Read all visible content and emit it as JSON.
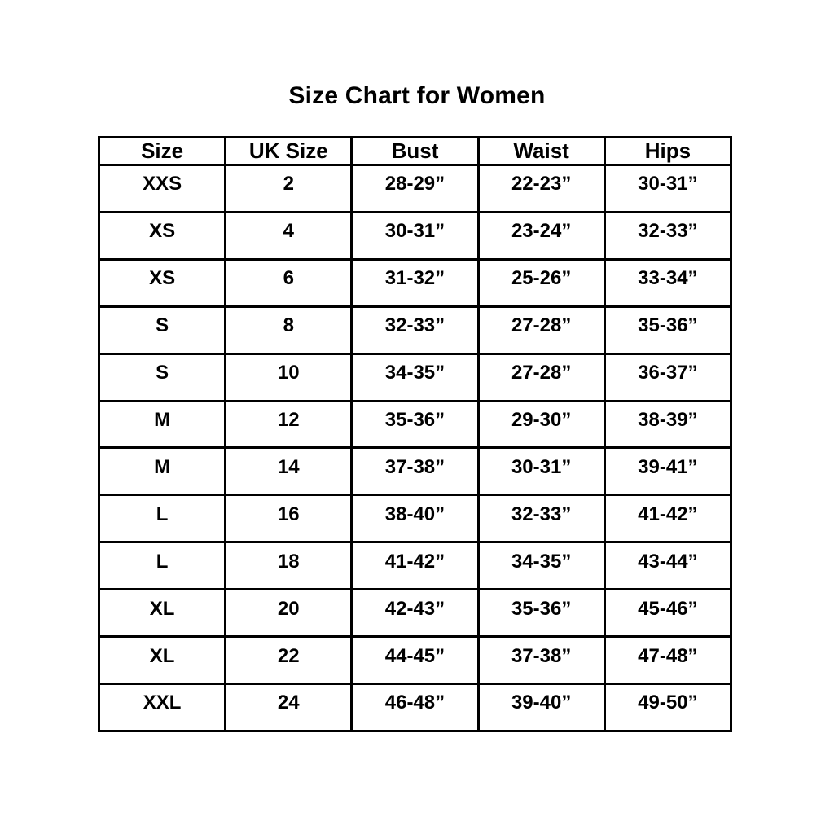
{
  "title": "Size Chart for Women",
  "chart_data": {
    "type": "table",
    "title": "Size Chart for Women",
    "columns": [
      "Size",
      "UK Size",
      "Bust",
      "Waist",
      "Hips"
    ],
    "rows": [
      [
        "XXS",
        "2",
        "28-29”",
        "22-23”",
        "30-31”"
      ],
      [
        "XS",
        "4",
        "30-31”",
        "23-24”",
        "32-33”"
      ],
      [
        "XS",
        "6",
        "31-32”",
        "25-26”",
        "33-34”"
      ],
      [
        "S",
        "8",
        "32-33”",
        "27-28”",
        "35-36”"
      ],
      [
        "S",
        "10",
        "34-35”",
        "27-28”",
        "36-37”"
      ],
      [
        "M",
        "12",
        "35-36”",
        "29-30”",
        "38-39”"
      ],
      [
        "M",
        "14",
        "37-38”",
        "30-31”",
        "39-41”"
      ],
      [
        "L",
        "16",
        "38-40”",
        "32-33”",
        "41-42”"
      ],
      [
        "L",
        "18",
        "41-42”",
        "34-35”",
        "43-44”"
      ],
      [
        "XL",
        "20",
        "42-43”",
        "35-36”",
        "45-46”"
      ],
      [
        "XL",
        "22",
        "44-45”",
        "37-38”",
        "47-48”"
      ],
      [
        "XXL",
        "24",
        "46-48”",
        "39-40”",
        "49-50”"
      ]
    ],
    "text_color": "#000000",
    "border_color": "#000000",
    "background_color": "#ffffff",
    "legend": "none",
    "grid": "full table borders"
  }
}
